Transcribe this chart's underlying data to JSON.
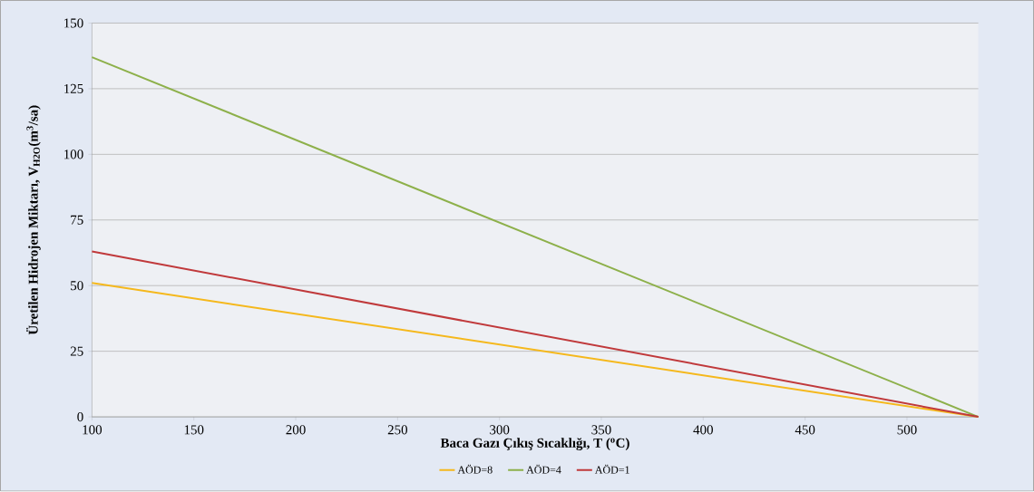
{
  "chart_data": {
    "type": "line",
    "xlabel": "Baca Gazı Çıkış Sıcaklığı, T ($^{o}$C)",
    "ylabel": "Üretilen Hidrojen Miktarı, V$_{H2O}$(m$^{3}$/sa)",
    "x": [
      100,
      535
    ],
    "series": [
      {
        "name": "AÖD=8",
        "color": "#f5b81c",
        "values": [
          51,
          0
        ]
      },
      {
        "name": "AÖD=4",
        "color": "#8db04a",
        "values": [
          137,
          0
        ]
      },
      {
        "name": "AÖD=1",
        "color": "#c0393b",
        "values": [
          63,
          0
        ]
      }
    ],
    "xlim": [
      100,
      535
    ],
    "xticks": [
      100,
      150,
      200,
      250,
      300,
      350,
      400,
      450,
      500
    ],
    "ylim": [
      0,
      150
    ],
    "yticks": [
      0,
      25,
      50,
      75,
      100,
      125,
      150
    ],
    "grid": "y",
    "legend": "bottom",
    "marker": "none",
    "line_style": "solid"
  }
}
